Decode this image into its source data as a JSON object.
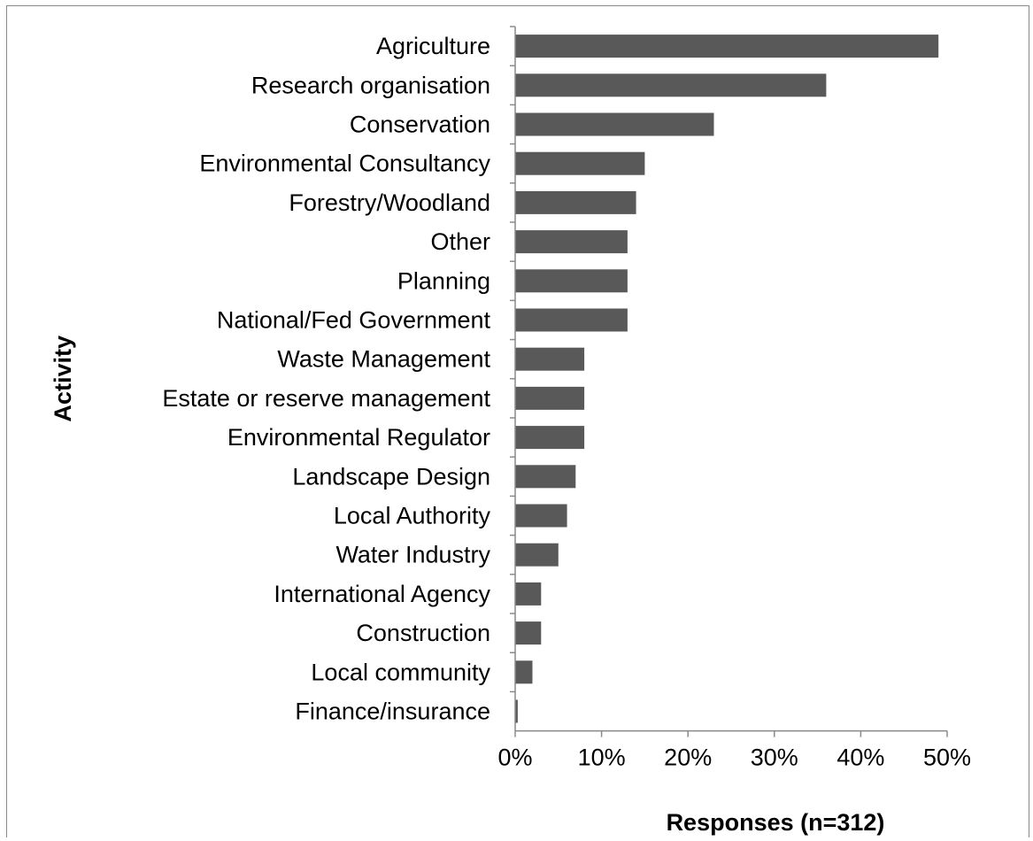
{
  "chart_data": {
    "type": "bar",
    "orientation": "horizontal",
    "categories": [
      "Agriculture",
      "Research organisation",
      "Conservation",
      "Environmental Consultancy",
      "Forestry/Woodland",
      "Other",
      "Planning",
      "National/Fed Government",
      "Waste Management",
      "Estate or reserve management",
      "Environmental Regulator",
      "Landscape Design",
      "Local Authority",
      "Water Industry",
      "International Agency",
      "Construction",
      "Local community",
      "Finance/insurance"
    ],
    "values": [
      49,
      36,
      23,
      15,
      14,
      13,
      13,
      13,
      8,
      8,
      8,
      7,
      6,
      5,
      3,
      3,
      2,
      0.3
    ],
    "value_unit": "%",
    "xlim": [
      0,
      50
    ],
    "xticks": [
      "0%",
      "10%",
      "20%",
      "30%",
      "40%",
      "50%"
    ],
    "xlabel": "Responses (n=312)",
    "ylabel": "Activity",
    "bar_color": "#595959",
    "grid": false,
    "legend": "none"
  }
}
